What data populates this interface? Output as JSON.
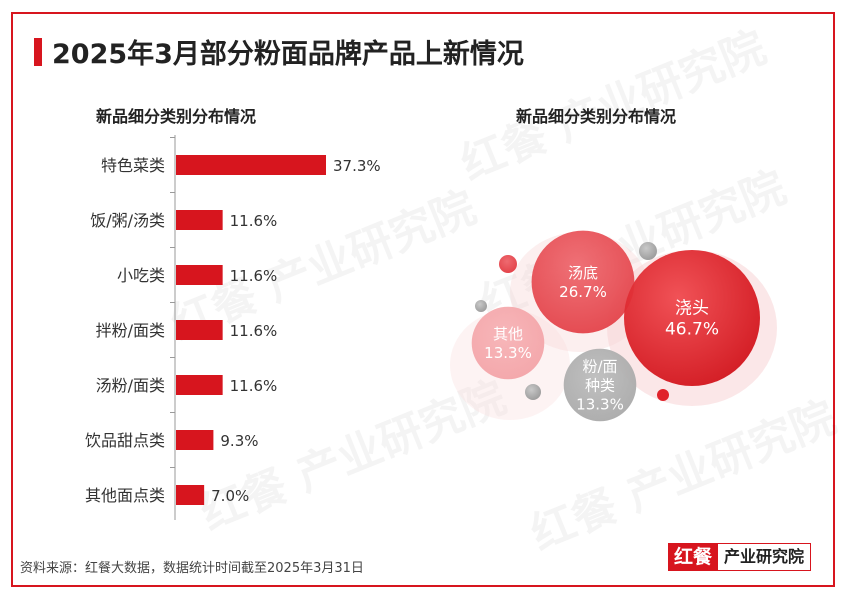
{
  "title": "2025年3月部分粉面品牌产品上新情况",
  "watermark": "红餐 产业研究院",
  "colors": {
    "accent": "#d7151e"
  },
  "source": "资料来源：红餐大数据，数据统计时间截至2025年3月31日",
  "logo": {
    "mark": "红餐",
    "text": "产业研究院"
  },
  "chart_data": [
    {
      "type": "bar",
      "orientation": "horizontal",
      "title": "新品细分类别分布情况",
      "categories": [
        "特色菜类",
        "饭/粥/汤类",
        "小吃类",
        "拌粉/面类",
        "汤粉/面类",
        "饮品甜点类",
        "其他面点类"
      ],
      "values": [
        37.3,
        11.6,
        11.6,
        11.6,
        11.6,
        9.3,
        7.0
      ],
      "value_labels": [
        "37.3%",
        "11.6%",
        "11.6%",
        "11.6%",
        "11.6%",
        "9.3%",
        "7.0%"
      ],
      "unit": "%"
    },
    {
      "type": "bubble",
      "title": "新品细分类别分布情况",
      "items": [
        {
          "name": "浇头",
          "value": 46.7,
          "label": "46.7%"
        },
        {
          "name": "汤底",
          "value": 26.7,
          "label": "26.7%"
        },
        {
          "name": "其他",
          "value": 13.3,
          "label": "13.3%"
        },
        {
          "name": "粉/面种类",
          "name_lines": [
            "粉/面",
            "种类"
          ],
          "value": 13.3,
          "label": "13.3%"
        }
      ]
    }
  ]
}
